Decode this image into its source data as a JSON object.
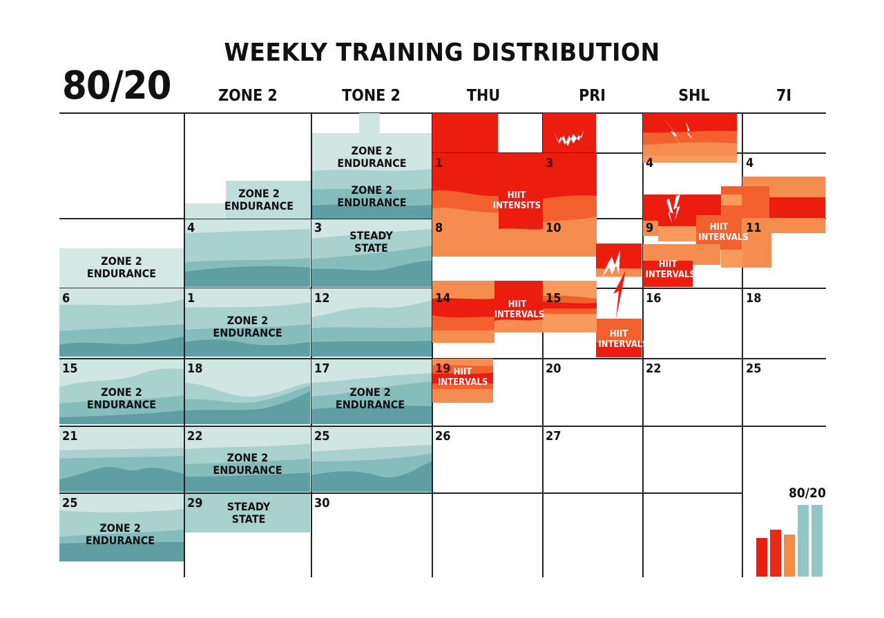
{
  "header": {
    "title": "WEEKLY TRAINING DISTRIBUTION",
    "brand": "80/20"
  },
  "columns": [
    {
      "label": ""
    },
    {
      "label": "ZONE 2"
    },
    {
      "label": "TONE 2"
    },
    {
      "label": "THU"
    },
    {
      "label": "PRI"
    },
    {
      "label": "SHL"
    },
    {
      "label": "7I"
    }
  ],
  "colors": {
    "teal_light": "#cfe6e3",
    "teal_mid": "#a9d2cf",
    "teal_mid2": "#8fc3c1",
    "teal_dark": "#5f9ea3",
    "red": "#ec1c0f",
    "red_orange": "#f2512a",
    "orange": "#f47a3c",
    "orange_light": "#f79a5c",
    "grid": "#222222"
  },
  "cells": {
    "r1c3_label": "ZONE 2\nENDURANCE",
    "r1c2_label": "ZONE 2 ENDURANCE",
    "r1c3a": "ZONE 2",
    "r1c3b": "ENDURANCE",
    "r1c3c": "ZONE 2",
    "r1c3d": "ENDURANCE",
    "r1c2a": "ZONE 2",
    "r1c2b": "ENDURANCE",
    "r2c4_num": "1",
    "r2c5_num": "3",
    "r2c6_num": "4",
    "r2c7_num": "4",
    "hiit_intensits_a": "HIIT",
    "hiit_intensits_b": "INTENSITS",
    "r3c1a": "ZONE 2",
    "r3c1b": "ENDURANCE",
    "r3c2_num": "4",
    "r3c3_num": "3",
    "r3c3a": "STEADY",
    "r3c3b": "STATE",
    "r3c4_num": "8",
    "r3c5_num": "10",
    "r3c6_num": "9",
    "r3c7_num": "11",
    "hiit_a": "HIIT",
    "intervals": "INTERVALS",
    "r4c1_num": "6",
    "r4c2_num": "1",
    "r4c2a": "ZONE 2",
    "r4c2b": "ENDURANCE",
    "r4c3_num": "12",
    "r4c4_num": "14",
    "r4c5_num": "15",
    "r4c6_num": "16",
    "r4c7_num": "18",
    "r5c1_num": "15",
    "r5c1a": "ZONE 2",
    "r5c1b": "ENDURANCE",
    "r5c2_num": "18",
    "r5c3_num": "17",
    "r5c3a": "ZONE 2",
    "r5c3b": "ENDURANCE",
    "r5c4_num": "19",
    "r5c5_num": "20",
    "r5c6_num": "22",
    "r5c7_num": "25",
    "r6c1_num": "21",
    "r6c2_num": "22",
    "r6c2a": "ZONE 2",
    "r6c2b": "ENDURANCE",
    "r6c3_num": "25",
    "r6c4_num": "26",
    "r6c5_num": "27",
    "r7c1_num": "25",
    "r7c1a": "ZONE 2",
    "r7c1b": "ENDURANCE",
    "r7c2_num": "29",
    "r7c2a": "STEADY",
    "r7c2b": "STATE",
    "r7c3_num": "30"
  },
  "mini_chart": {
    "label": "80/20",
    "bars": [
      {
        "height": 56,
        "color": "#ec1c0f"
      },
      {
        "height": 68,
        "color": "#ec2a14"
      },
      {
        "height": 61,
        "color": "#f58c45"
      },
      {
        "height": 104,
        "color": "#92c6c6"
      },
      {
        "height": 104,
        "color": "#92c6c6"
      }
    ]
  }
}
